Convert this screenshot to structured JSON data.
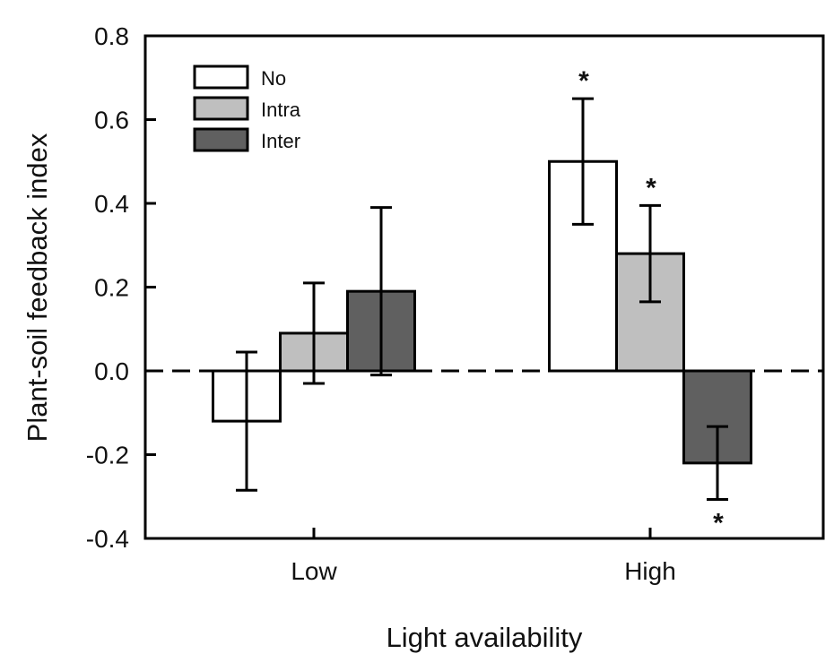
{
  "chart_data": {
    "type": "bar",
    "title": "",
    "xlabel": "Light availability",
    "ylabel": "Plant-soil feedback index",
    "ylim": [
      -0.4,
      0.8
    ],
    "yticks": [
      -0.4,
      -0.2,
      0.0,
      0.2,
      0.4,
      0.6,
      0.8
    ],
    "ytick_labels": [
      "-0.4",
      "-0.2",
      "0.0",
      "0.2",
      "0.4",
      "0.6",
      "0.8"
    ],
    "categories": [
      "Low",
      "High"
    ],
    "legend_position": "top-left",
    "reference_line": {
      "y": 0.0,
      "style": "dashed"
    },
    "series": [
      {
        "name": "No",
        "color": "#ffffff",
        "values": [
          -0.12,
          0.5
        ],
        "errors": [
          0.165,
          0.15
        ],
        "significant": [
          false,
          true
        ]
      },
      {
        "name": "Intra",
        "color": "#bfbfbf",
        "values": [
          0.09,
          0.28
        ],
        "errors": [
          0.12,
          0.115
        ],
        "significant": [
          false,
          true
        ]
      },
      {
        "name": "Inter",
        "color": "#606060",
        "values": [
          0.19,
          -0.22
        ],
        "errors": [
          0.2,
          0.087
        ],
        "significant": [
          false,
          true
        ]
      }
    ],
    "significance_marker": "*"
  }
}
